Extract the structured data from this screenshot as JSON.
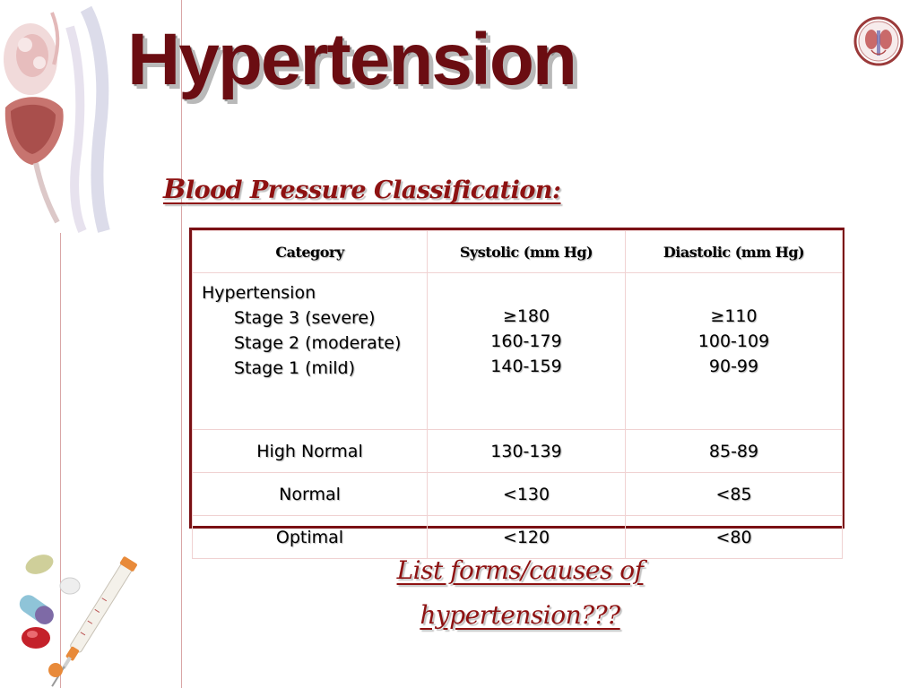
{
  "slide": {
    "title": "Hypertension",
    "subtitle_first": "B",
    "subtitle_rest": "lood Pressure Classification:",
    "call_to_action_line1": "List forms/causes of",
    "call_to_action_line2": "hypertension???"
  },
  "table": {
    "headers": [
      "Category",
      "Systolic (mm Hg)",
      "Diastolic (mm Hg)"
    ],
    "hypertension": {
      "label": "Hypertension",
      "stages": [
        {
          "label": "Stage 3 (severe)",
          "systolic": "≥180",
          "diastolic": "≥110"
        },
        {
          "label": "Stage 2 (moderate)",
          "systolic": "160-179",
          "diastolic": "100-109"
        },
        {
          "label": "Stage 1 (mild)",
          "systolic": "140-159",
          "diastolic": "90-99"
        }
      ]
    },
    "rows": [
      {
        "category": "High Normal",
        "systolic": "130-139",
        "diastolic": "85-89"
      },
      {
        "category": "Normal",
        "systolic": "<130",
        "diastolic": "<85"
      },
      {
        "category": "Optimal",
        "systolic": "<120",
        "diastolic": "<80"
      }
    ]
  },
  "colors": {
    "title": "#6b0d12",
    "accent_red": "#8e1212",
    "table_border": "#7a1014",
    "margin_line": "#d9a6a6"
  },
  "icons": {
    "top_left": "kidney-anatomy-illustration",
    "top_right": "kidney-logo-icon",
    "bottom_left": "syringe-and-pills-illustration"
  }
}
